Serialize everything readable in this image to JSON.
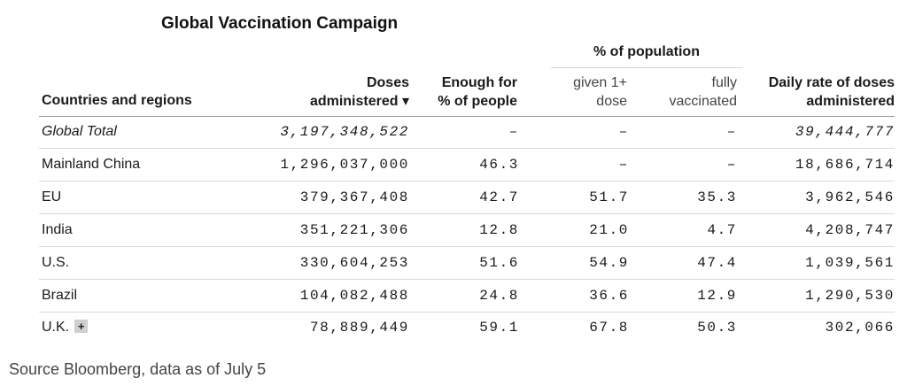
{
  "title": "Global Vaccination Campaign",
  "group_header": "% of population",
  "headers": {
    "country": "Countries and regions",
    "doses_line1": "Doses",
    "doses_line2": "administered ▾",
    "enough_line1": "Enough for",
    "enough_line2": "% of people",
    "given_line1": "given 1+",
    "given_line2": "dose",
    "fully_line1": "fully",
    "fully_line2": "vaccinated",
    "daily_line1": "Daily rate of doses",
    "daily_line2": "administered"
  },
  "rows": [
    {
      "country": "Global Total",
      "doses": "3,197,348,522",
      "enough": "–",
      "given": "–",
      "fully": "–",
      "daily": "39,444,777"
    },
    {
      "country": "Mainland China",
      "doses": "1,296,037,000",
      "enough": "46.3",
      "given": "–",
      "fully": "–",
      "daily": "18,686,714"
    },
    {
      "country": "EU",
      "doses": "379,367,408",
      "enough": "42.7",
      "given": "51.7",
      "fully": "35.3",
      "daily": "3,962,546"
    },
    {
      "country": "India",
      "doses": "351,221,306",
      "enough": "12.8",
      "given": "21.0",
      "fully": "4.7",
      "daily": "4,208,747"
    },
    {
      "country": "U.S.",
      "doses": "330,604,253",
      "enough": "51.6",
      "given": "54.9",
      "fully": "47.4",
      "daily": "1,039,561"
    },
    {
      "country": "Brazil",
      "doses": "104,082,488",
      "enough": "24.8",
      "given": "36.6",
      "fully": "12.9",
      "daily": "1,290,530"
    },
    {
      "country": "U.K.",
      "doses": "78,889,449",
      "enough": "59.1",
      "given": "67.8",
      "fully": "50.3",
      "daily": "302,066"
    }
  ],
  "expand_icon": {
    "icon": "plus-icon",
    "glyph": "+"
  },
  "source": "Source Bloomberg, data as of July 5"
}
